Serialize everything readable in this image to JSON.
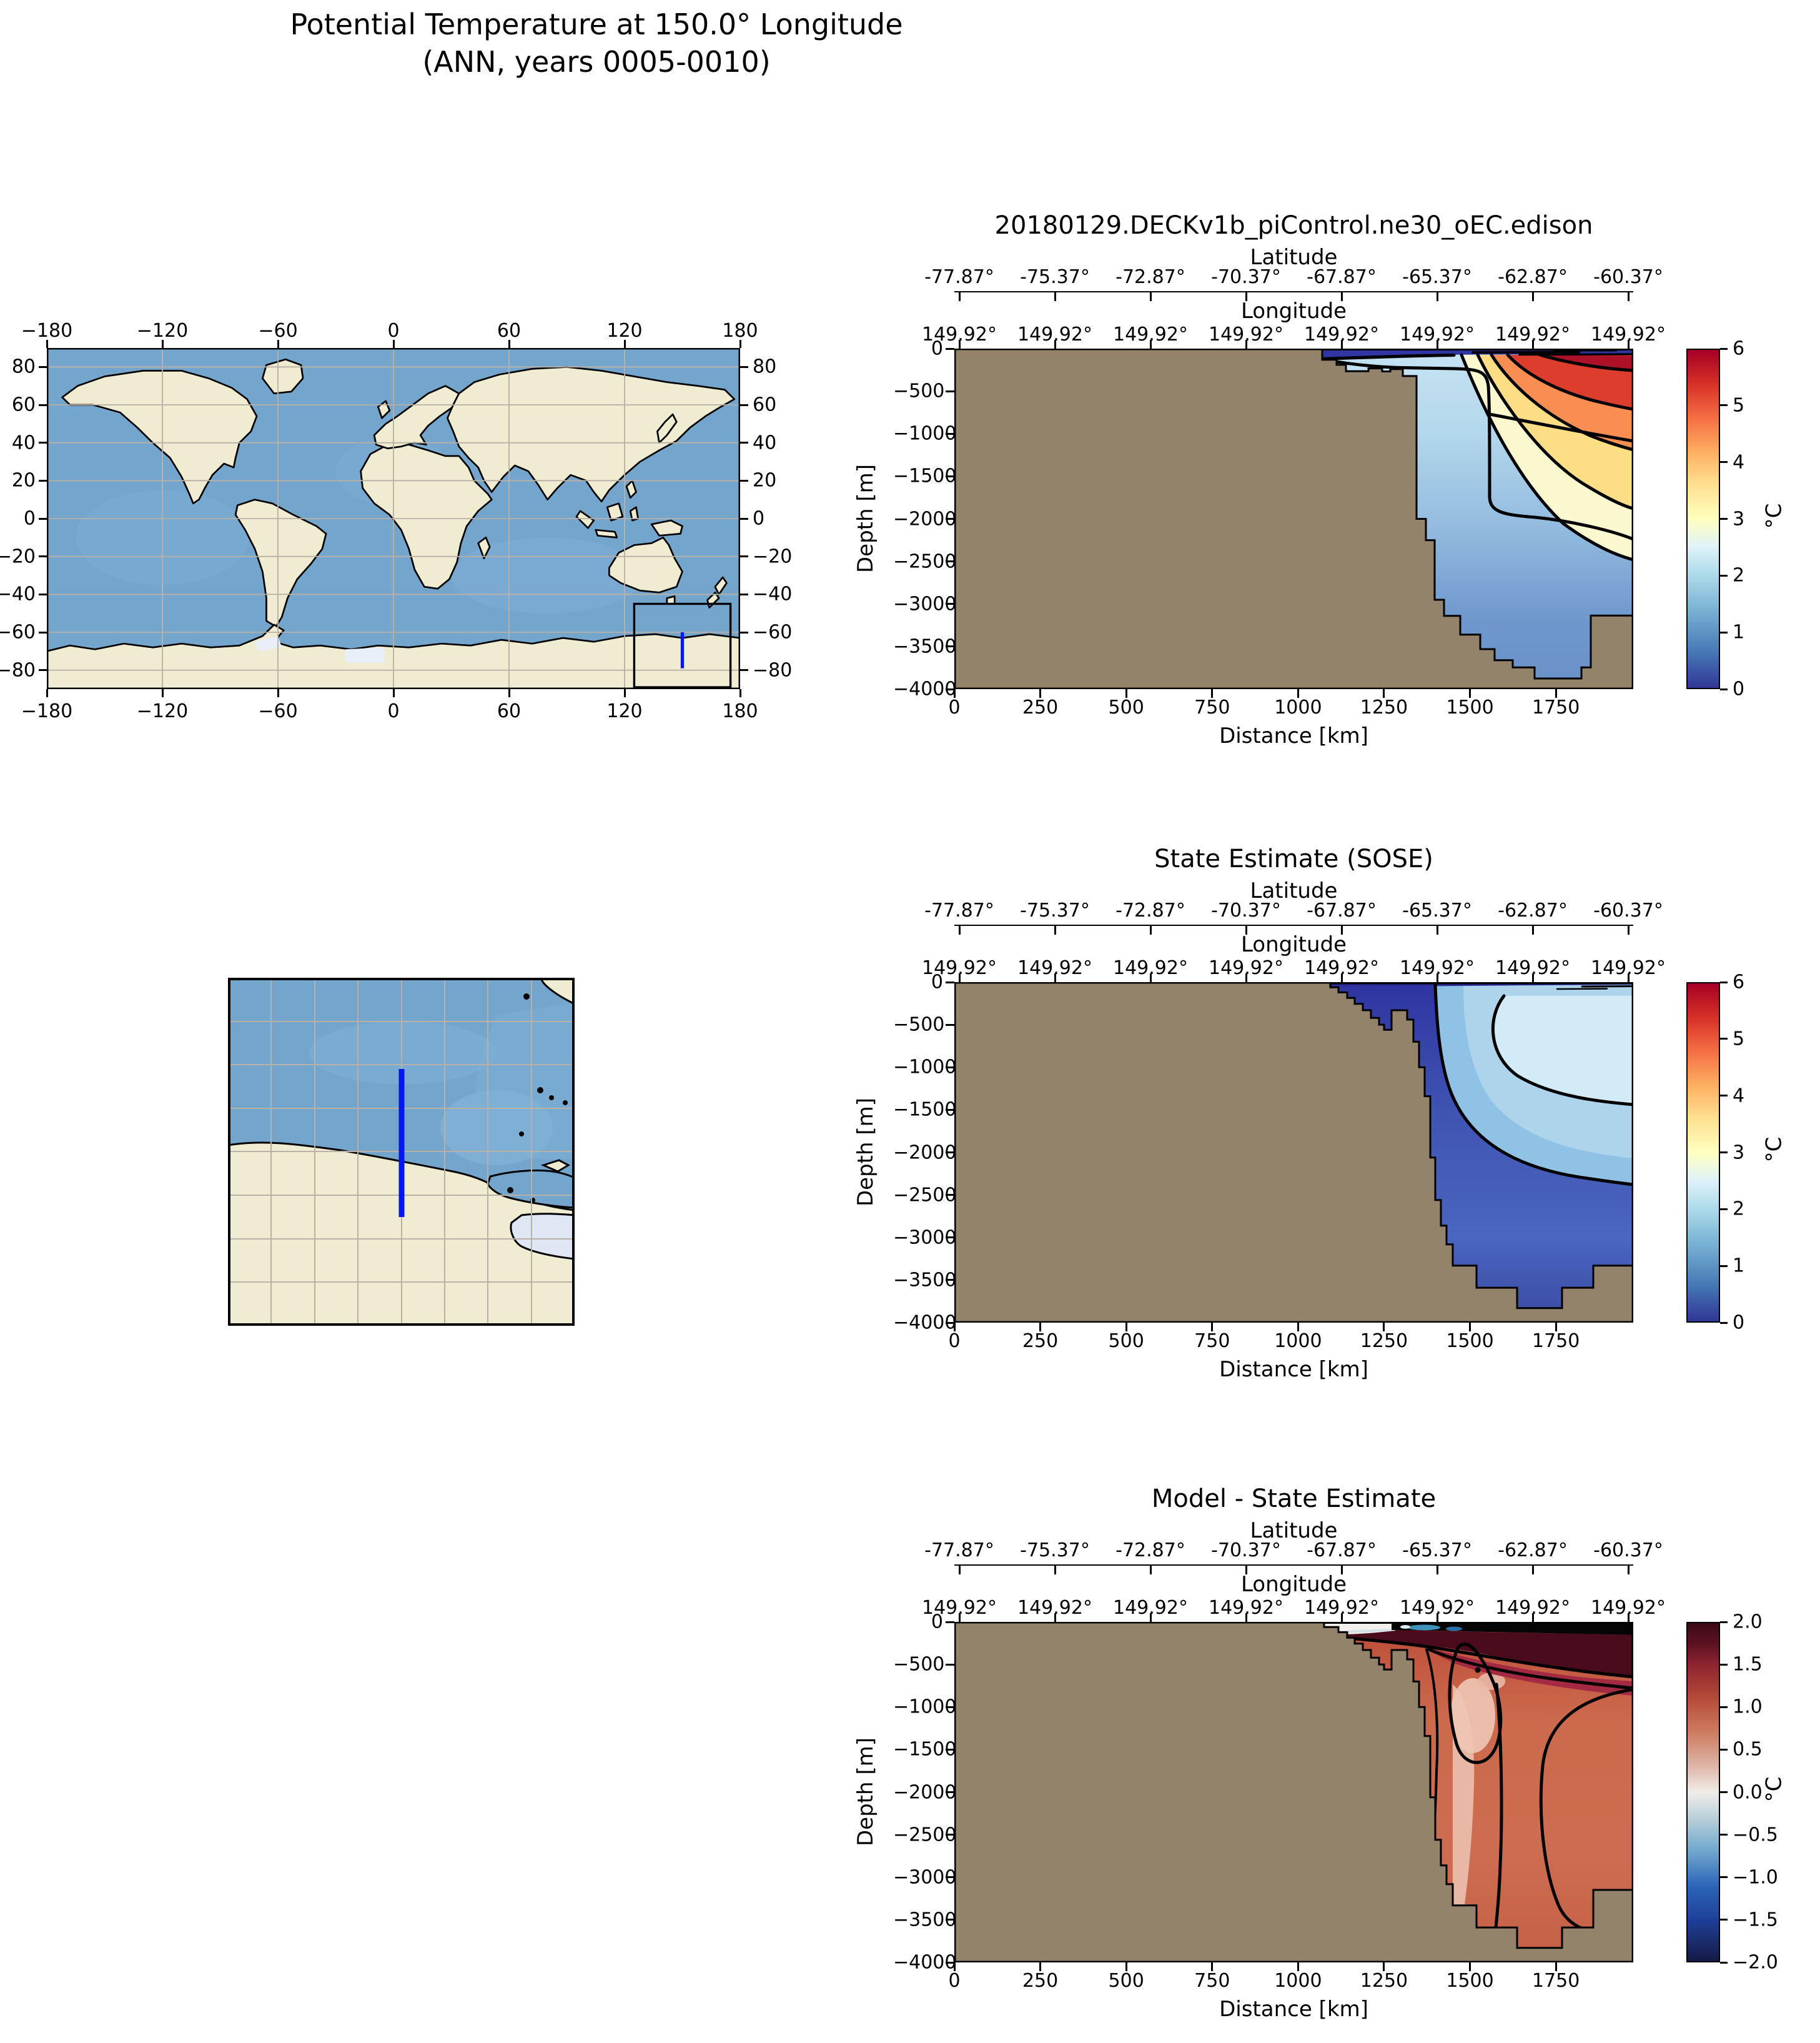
{
  "figure_title": [
    "Potential Temperature at 150.0° Longitude",
    "(ANN, years 0005-0010)"
  ],
  "world_map": {
    "lon_ticks": [
      "−180",
      "−120",
      "−60",
      "0",
      "60",
      "120",
      "180"
    ],
    "lat_ticks": [
      "80",
      "60",
      "40",
      "20",
      "0",
      "−20",
      "−40",
      "−60",
      "−80"
    ],
    "region_box": {
      "lon_min": 125,
      "lon_max": 175,
      "lat_min": -88,
      "lat_max": -45
    },
    "transect": {
      "lon": 150,
      "lat_min": -79,
      "lat_max": -60
    }
  },
  "axes": {
    "lat": {
      "label": "Latitude",
      "ticks": [
        "-77.87°",
        "-75.37°",
        "-72.87°",
        "-70.37°",
        "-67.87°",
        "-65.37°",
        "-62.87°",
        "-60.37°"
      ]
    },
    "lon": {
      "label": "Longitude",
      "ticks": [
        "149.92°",
        "149.92°",
        "149.92°",
        "149.92°",
        "149.92°",
        "149.92°",
        "149.92°",
        "149.92°"
      ]
    },
    "depth": {
      "label": "Depth [m]",
      "ticks": [
        "0",
        "−500",
        "−1000",
        "−1500",
        "−2000",
        "−2500",
        "−3000",
        "−3500",
        "−4000"
      ]
    },
    "distance": {
      "label": "Distance [km]",
      "ticks": [
        "0",
        "250",
        "500",
        "750",
        "1000",
        "1250",
        "1500",
        "1750"
      ]
    }
  },
  "sections": [
    {
      "id": "model",
      "title": "20180129.DECKv1b_piControl.ne30_oEC.edison",
      "colorbar": {
        "ticks": [
          "6",
          "5",
          "4",
          "3",
          "2",
          "1",
          "0"
        ],
        "unit": "°C",
        "vmin": 0,
        "vmax": 6
      }
    },
    {
      "id": "sose",
      "title": "State Estimate (SOSE)",
      "colorbar": {
        "ticks": [
          "6",
          "5",
          "4",
          "3",
          "2",
          "1",
          "0"
        ],
        "unit": "°C",
        "vmin": 0,
        "vmax": 6
      }
    },
    {
      "id": "diff",
      "title": "Model - State Estimate",
      "colorbar": {
        "ticks": [
          "2.0",
          "1.5",
          "1.0",
          "0.5",
          "0.0",
          "−0.5",
          "−1.0",
          "−1.5",
          "−2.0"
        ],
        "unit": "°C",
        "vmin": -2,
        "vmax": 2
      }
    }
  ],
  "colors": {
    "land_section": "#93836b",
    "map_land": "#efecd2",
    "map_ocean": "#74a5cd",
    "ice_shelf": "#dfe7f4",
    "transect_line": "#0018f0",
    "gridline": "#b9b0a6"
  },
  "chart_data": [
    {
      "type": "heatmap",
      "id": "model-section",
      "title": "20180129.DECKv1b_piControl.ne30_oEC.edison",
      "xlabel": "Distance [km]",
      "ylabel": "Depth [m]",
      "xlim": [
        0,
        1975
      ],
      "ylim": [
        -4000,
        0
      ],
      "x_ticks": [
        0,
        250,
        500,
        750,
        1000,
        1250,
        1500,
        1750
      ],
      "y_ticks": [
        0,
        -500,
        -1000,
        -1500,
        -2000,
        -2500,
        -3000,
        -3500,
        -4000
      ],
      "top_axis_latitude": [
        -77.87,
        -75.37,
        -72.87,
        -70.37,
        -67.87,
        -65.37,
        -62.87,
        -60.37
      ],
      "top_axis_longitude": [
        149.92,
        149.92,
        149.92,
        149.92,
        149.92,
        149.92,
        149.92,
        149.92
      ],
      "colormap": "RdYlBu_r",
      "colorbar_range_degC": [
        0,
        6
      ],
      "contour_levels_degC": [
        0,
        1,
        2,
        3,
        4,
        5
      ],
      "bathymetry_km_depth_m": [
        [
          1070,
          0
        ],
        [
          1070,
          -130
        ],
        [
          1112,
          -130
        ],
        [
          1112,
          -190
        ],
        [
          1140,
          -190
        ],
        [
          1140,
          -265
        ],
        [
          1205,
          -265
        ],
        [
          1205,
          -232
        ],
        [
          1245,
          -232
        ],
        [
          1245,
          -268
        ],
        [
          1268,
          -268
        ],
        [
          1268,
          -240
        ],
        [
          1305,
          -240
        ],
        [
          1305,
          -322
        ],
        [
          1345,
          -322
        ],
        [
          1345,
          -2000
        ],
        [
          1372,
          -2000
        ],
        [
          1372,
          -2250
        ],
        [
          1398,
          -2250
        ],
        [
          1398,
          -2950
        ],
        [
          1425,
          -2950
        ],
        [
          1425,
          -3140
        ],
        [
          1472,
          -3140
        ],
        [
          1472,
          -3360
        ],
        [
          1530,
          -3360
        ],
        [
          1530,
          -3530
        ],
        [
          1572,
          -3530
        ],
        [
          1572,
          -3660
        ],
        [
          1625,
          -3660
        ],
        [
          1625,
          -3745
        ],
        [
          1688,
          -3745
        ],
        [
          1688,
          -3875
        ],
        [
          1825,
          -3875
        ],
        [
          1825,
          -3745
        ],
        [
          1852,
          -3745
        ],
        [
          1852,
          -3135
        ],
        [
          1975,
          -3135
        ]
      ],
      "features": [
        "Cold surface layer ~0-0.5 °C (0-100 m) from shelf edge (1070 km) to open ocean",
        "Warm deep-water core > 5 °C near 1700-1950 km at 100-300 m depth",
        "Warm tongue 2-4 °C sinking seaward to ~1000 m at the right edge",
        "Interior basin water ~1-2 °C below 500 m"
      ]
    },
    {
      "type": "heatmap",
      "id": "sose-section",
      "title": "State Estimate (SOSE)",
      "xlabel": "Distance [km]",
      "ylabel": "Depth [m]",
      "xlim": [
        0,
        1975
      ],
      "ylim": [
        -4000,
        0
      ],
      "x_ticks": [
        0,
        250,
        500,
        750,
        1000,
        1250,
        1500,
        1750
      ],
      "y_ticks": [
        0,
        -500,
        -1000,
        -1500,
        -2000,
        -2500,
        -3000,
        -3500,
        -4000
      ],
      "top_axis_latitude": [
        -77.87,
        -75.37,
        -72.87,
        -70.37,
        -67.87,
        -65.37,
        -62.87,
        -60.37
      ],
      "top_axis_longitude": [
        149.92,
        149.92,
        149.92,
        149.92,
        149.92,
        149.92,
        149.92,
        149.92
      ],
      "colormap": "RdYlBu_r",
      "colorbar_range_degC": [
        0,
        6
      ],
      "contour_levels_degC": [
        1,
        2
      ],
      "bathymetry_km_depth_m": [
        [
          1093,
          0
        ],
        [
          1093,
          -60
        ],
        [
          1118,
          -60
        ],
        [
          1118,
          -120
        ],
        [
          1142,
          -120
        ],
        [
          1142,
          -185
        ],
        [
          1165,
          -185
        ],
        [
          1165,
          -255
        ],
        [
          1188,
          -255
        ],
        [
          1188,
          -330
        ],
        [
          1212,
          -330
        ],
        [
          1212,
          -420
        ],
        [
          1235,
          -420
        ],
        [
          1235,
          -500
        ],
        [
          1250,
          -500
        ],
        [
          1250,
          -560
        ],
        [
          1272,
          -560
        ],
        [
          1272,
          -330
        ],
        [
          1318,
          -330
        ],
        [
          1318,
          -440
        ],
        [
          1335,
          -440
        ],
        [
          1335,
          -700
        ],
        [
          1352,
          -700
        ],
        [
          1352,
          -1000
        ],
        [
          1368,
          -1000
        ],
        [
          1368,
          -1340
        ],
        [
          1385,
          -1340
        ],
        [
          1385,
          -2060
        ],
        [
          1400,
          -2060
        ],
        [
          1400,
          -2560
        ],
        [
          1415,
          -2560
        ],
        [
          1415,
          -2860
        ],
        [
          1432,
          -2860
        ],
        [
          1432,
          -3080
        ],
        [
          1450,
          -3080
        ],
        [
          1450,
          -3330
        ],
        [
          1518,
          -3330
        ],
        [
          1518,
          -3590
        ],
        [
          1638,
          -3590
        ],
        [
          1638,
          -3830
        ],
        [
          1768,
          -3830
        ],
        [
          1768,
          -3590
        ],
        [
          1858,
          -3590
        ],
        [
          1858,
          -3330
        ],
        [
          1975,
          -3330
        ]
      ],
      "features": [
        "Near-freezing shelf water ~0 °C between 1100 and 1350 km (0-600 m)",
        "Subsurface warm lens 1.5-2.5 °C centered near 1750 km, 100-1000 m",
        "Deep basin water ~0.5-1 °C below 2000 m"
      ]
    },
    {
      "type": "heatmap",
      "id": "model-minus-sose-section",
      "title": "Model - State Estimate",
      "xlabel": "Distance [km]",
      "ylabel": "Depth [m]",
      "xlim": [
        0,
        1975
      ],
      "ylim": [
        -4000,
        0
      ],
      "x_ticks": [
        0,
        250,
        500,
        750,
        1000,
        1250,
        1500,
        1750
      ],
      "y_ticks": [
        0,
        -500,
        -1000,
        -1500,
        -2000,
        -2500,
        -3000,
        -3500,
        -4000
      ],
      "top_axis_latitude": [
        -77.87,
        -75.37,
        -72.87,
        -70.37,
        -67.87,
        -65.37,
        -62.87,
        -60.37
      ],
      "top_axis_longitude": [
        149.92,
        149.92,
        149.92,
        149.92,
        149.92,
        149.92,
        149.92,
        149.92
      ],
      "colormap": "balance",
      "colorbar_range_degC": [
        -2,
        2
      ],
      "contour_levels_degC": [
        -2,
        -1.5,
        -1,
        -0.5,
        0,
        0.5,
        1,
        1.5,
        2
      ],
      "bathymetry_km_depth_m": [
        [
          1075,
          0
        ],
        [
          1093,
          -60
        ],
        [
          1118,
          -120
        ],
        [
          1142,
          -185
        ],
        [
          1165,
          -255
        ],
        [
          1188,
          -330
        ],
        [
          1212,
          -420
        ],
        [
          1235,
          -500
        ],
        [
          1250,
          -560
        ],
        [
          1272,
          -330
        ],
        [
          1318,
          -440
        ],
        [
          1335,
          -700
        ],
        [
          1352,
          -1000
        ],
        [
          1368,
          -1340
        ],
        [
          1385,
          -2060
        ],
        [
          1400,
          -2560
        ],
        [
          1415,
          -2860
        ],
        [
          1432,
          -3080
        ],
        [
          1450,
          -3330
        ],
        [
          1518,
          -3590
        ],
        [
          1638,
          -3830
        ],
        [
          1768,
          -3590
        ],
        [
          1858,
          -3150
        ],
        [
          1975,
          -3150
        ]
      ],
      "features": [
        "Model warmer than SOSE by +0.5 to +1.5 °C over most of the section",
        "Bias exceeding +2 °C in a 100-500 m layer offshore of the shelf break (dark band)",
        "Near-zero bias patch at the surface near the shelf break (1080-1290 km)",
        "Small cool spots ~ −1 °C embedded near 100 m around 1350 km"
      ]
    },
    {
      "type": "heatmap",
      "id": "world-map",
      "title": "",
      "xlim": [
        -180,
        180
      ],
      "ylim": [
        -90,
        90
      ],
      "x_ticks": [
        -180,
        -120,
        -60,
        0,
        60,
        120,
        180
      ],
      "y_ticks": [
        80,
        60,
        40,
        20,
        0,
        -20,
        -40,
        -60,
        -80
      ],
      "region_box_lon_lat": [
        [
          125,
          -88
        ],
        [
          175,
          -45
        ]
      ],
      "transect_lon_lat": [
        [
          150,
          -79
        ],
        [
          150,
          -60
        ]
      ]
    },
    {
      "type": "heatmap",
      "id": "inset-map",
      "title": "",
      "xlim": [
        125,
        175
      ],
      "ylim": [
        -88,
        -45
      ],
      "transect_lon_lat": [
        [
          150,
          -79
        ],
        [
          150,
          -60
        ]
      ]
    }
  ]
}
